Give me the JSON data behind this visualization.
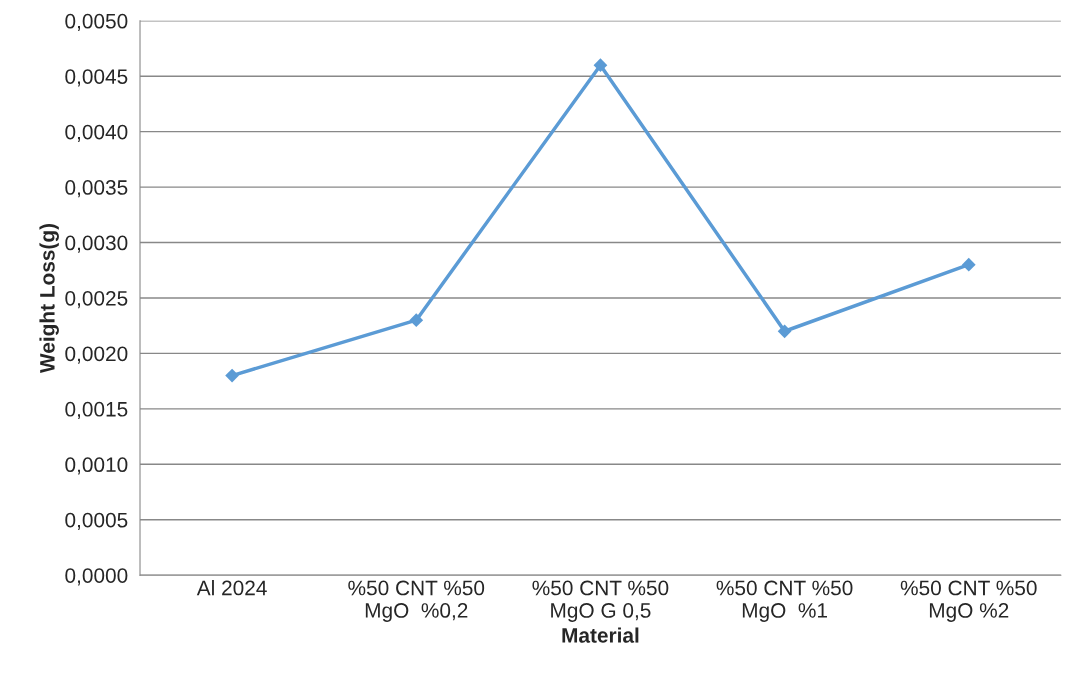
{
  "chart_data": {
    "type": "line",
    "xlabel": "Material",
    "ylabel": "Weight Loss(g)",
    "categories": [
      "Al 2024",
      "%50 CNT %50\nMgO  %0,2",
      "%50 CNT %50\nMgO G 0,5",
      "%50 CNT %50\nMgO  %1",
      "%50 CNT %50\nMgO %2"
    ],
    "series": [
      {
        "color": "#5b9bd5",
        "values": [
          0.0018,
          0.0023,
          0.0046,
          0.0022,
          0.0028
        ]
      }
    ],
    "ylim": [
      0,
      0.005
    ],
    "yticks": [
      {
        "value": 0,
        "label": "0,0000"
      },
      {
        "value": 0.0005,
        "label": "0,0005"
      },
      {
        "value": 0.001,
        "label": "0,0010"
      },
      {
        "value": 0.0015,
        "label": "0,0015"
      },
      {
        "value": 0.002,
        "label": "0,0020"
      },
      {
        "value": 0.0025,
        "label": "0,0025"
      },
      {
        "value": 0.003,
        "label": "0,0030"
      },
      {
        "value": 0.0035,
        "label": "0,0035"
      },
      {
        "value": 0.004,
        "label": "0,0040"
      },
      {
        "value": 0.0045,
        "label": "0,0045"
      },
      {
        "value": 0.005,
        "label": "0,0050"
      }
    ],
    "grid": "y",
    "marker": "diamond",
    "line_style": "solid",
    "legend": false
  }
}
